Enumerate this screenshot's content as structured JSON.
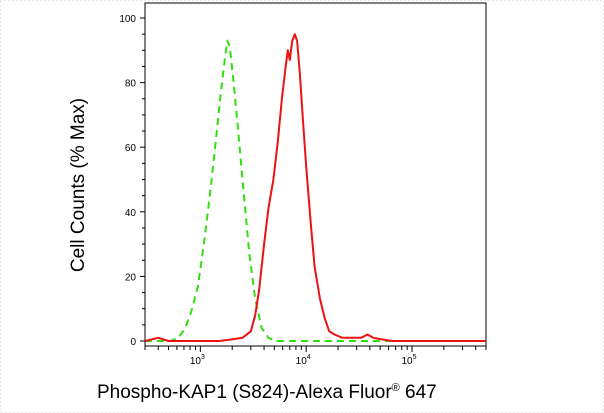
{
  "chart_data": {
    "type": "line",
    "title": "",
    "xlabel": "Phospho-KAP1 (S824)-Alexa Fluor",
    "xlabel_superscript": "®",
    "xlabel_suffix": " 647",
    "ylabel": "Cell Counts (% Max)",
    "x_scale": "log",
    "xlim": [
      300,
      500000
    ],
    "ylim": [
      0,
      100
    ],
    "y_ticks": [
      "0",
      "20",
      "40",
      "60",
      "80",
      "100"
    ],
    "x_ticks": [
      {
        "base": "10",
        "exp": "3",
        "value": 1000
      },
      {
        "base": "10",
        "exp": "4",
        "value": 10000
      },
      {
        "base": "10",
        "exp": "5",
        "value": 100000
      }
    ],
    "series": [
      {
        "style": "dashed",
        "color": "#33dd11",
        "points": [
          [
            300,
            0
          ],
          [
            520,
            0
          ],
          [
            620,
            1
          ],
          [
            720,
            4
          ],
          [
            820,
            9
          ],
          [
            950,
            17
          ],
          [
            1100,
            32
          ],
          [
            1250,
            47
          ],
          [
            1400,
            62
          ],
          [
            1550,
            76
          ],
          [
            1700,
            87
          ],
          [
            1800,
            93
          ],
          [
            1900,
            91
          ],
          [
            2050,
            81
          ],
          [
            2250,
            67
          ],
          [
            2550,
            47
          ],
          [
            2900,
            27
          ],
          [
            3300,
            13
          ],
          [
            3800,
            4
          ],
          [
            4400,
            1
          ],
          [
            5200,
            0
          ],
          [
            500000,
            0
          ]
        ]
      },
      {
        "style": "solid",
        "color": "#ee1111",
        "points": [
          [
            300,
            0
          ],
          [
            400,
            1
          ],
          [
            500,
            0
          ],
          [
            1000,
            0
          ],
          [
            1500,
            0
          ],
          [
            2000,
            0.5
          ],
          [
            2500,
            1
          ],
          [
            3000,
            3
          ],
          [
            3300,
            8
          ],
          [
            3600,
            16
          ],
          [
            4000,
            30
          ],
          [
            4400,
            41
          ],
          [
            4900,
            50
          ],
          [
            5400,
            62
          ],
          [
            5900,
            75
          ],
          [
            6400,
            85
          ],
          [
            6700,
            90
          ],
          [
            7000,
            87
          ],
          [
            7400,
            93
          ],
          [
            7800,
            95
          ],
          [
            8200,
            93
          ],
          [
            8700,
            83
          ],
          [
            9300,
            69
          ],
          [
            10000,
            54
          ],
          [
            11000,
            37
          ],
          [
            12000,
            23
          ],
          [
            13500,
            13
          ],
          [
            15000,
            7
          ],
          [
            16500,
            3
          ],
          [
            18500,
            2
          ],
          [
            22000,
            1
          ],
          [
            28000,
            1
          ],
          [
            33000,
            1
          ],
          [
            38000,
            2
          ],
          [
            43000,
            1
          ],
          [
            52000,
            0.5
          ],
          [
            65000,
            0
          ],
          [
            500000,
            0
          ]
        ]
      }
    ],
    "grid": false,
    "legend": "none"
  }
}
